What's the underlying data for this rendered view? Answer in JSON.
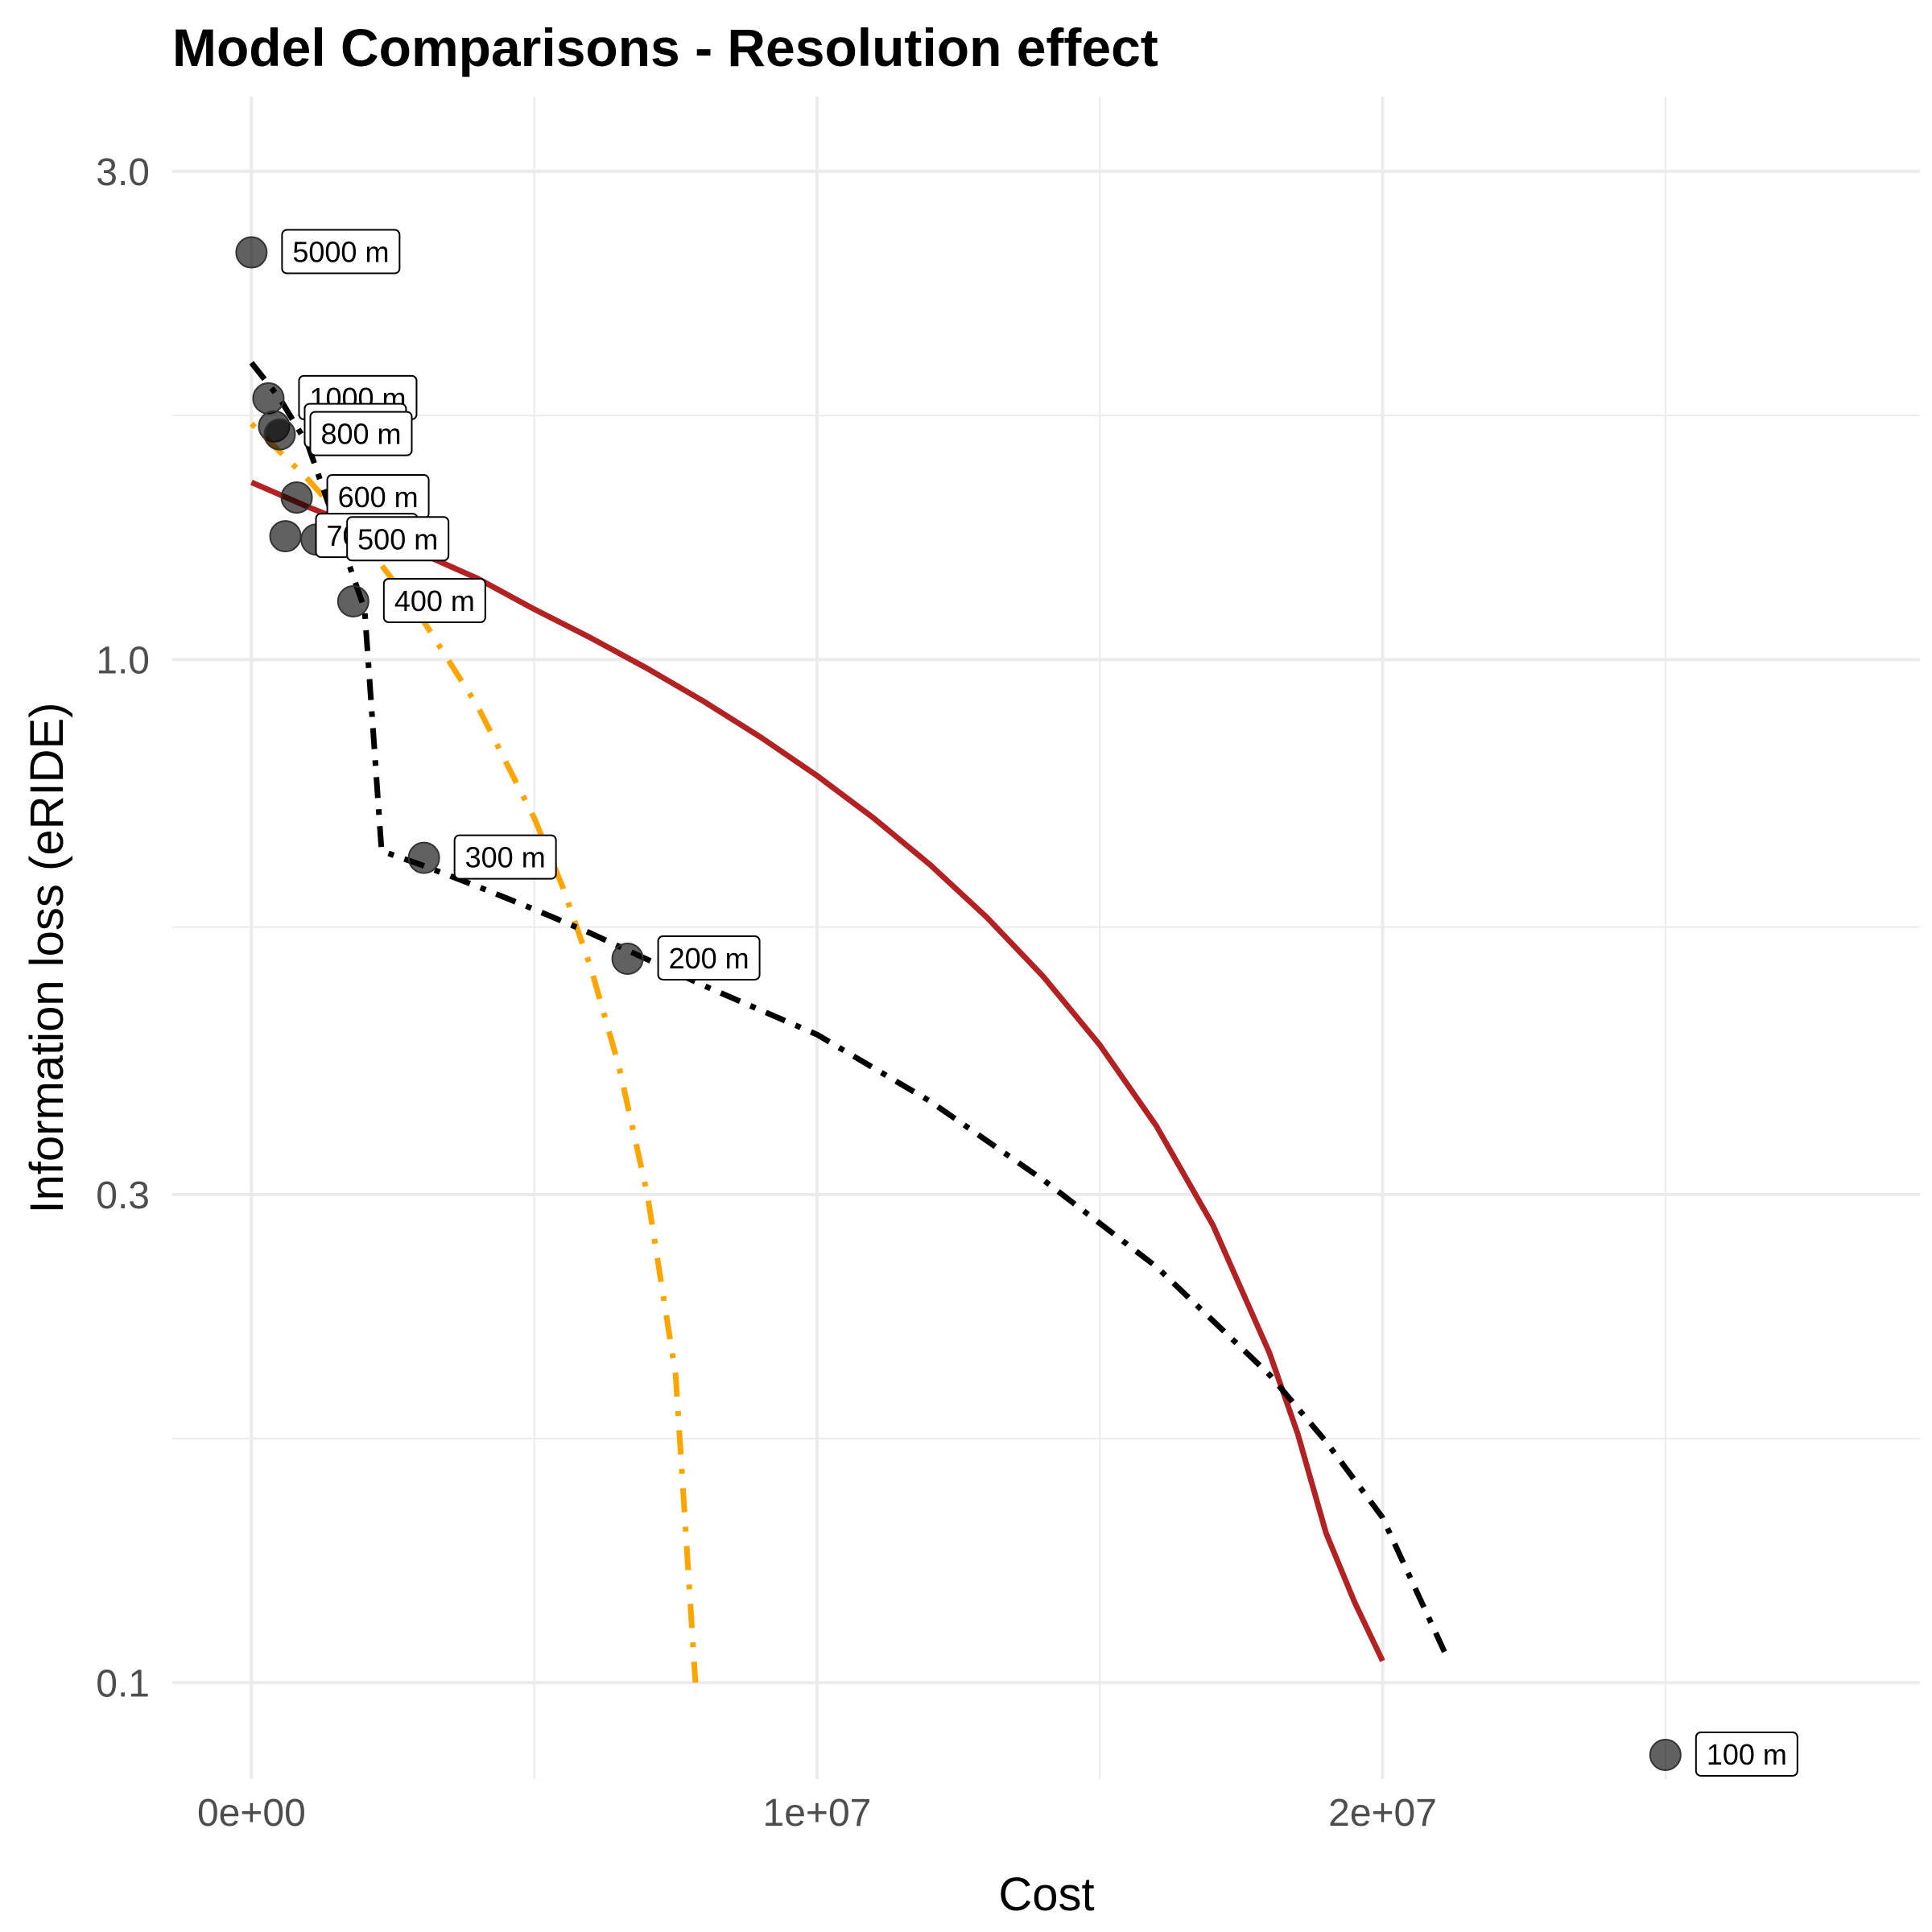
{
  "chart_data": {
    "type": "scatter",
    "title": "Model Comparisons - Resolution effect",
    "xlabel": "Cost",
    "ylabel": "Information loss (eRIDE)",
    "xlim": [
      -1400000,
      29500000
    ],
    "ylim": [
      0.0805,
      3.55
    ],
    "y_scale": "log10",
    "x_ticks": [
      {
        "value": 0,
        "label": "0e+00"
      },
      {
        "value": 10000000,
        "label": "1e+07"
      },
      {
        "value": 20000000,
        "label": "2e+07"
      }
    ],
    "x_minor": [
      5000000,
      15000000,
      25000000
    ],
    "y_ticks": [
      {
        "value": 0.1,
        "label": "0.1"
      },
      {
        "value": 0.3,
        "label": "0.3"
      },
      {
        "value": 1.0,
        "label": "1.0"
      },
      {
        "value": 3.0,
        "label": "3.0"
      }
    ],
    "y_minor": [
      0.1732,
      0.5477,
      1.7321
    ],
    "grid": true,
    "points": [
      {
        "x": 0,
        "y": 2.5,
        "label": "5000 m"
      },
      {
        "x": 300000,
        "y": 1.8,
        "label": "1000 m"
      },
      {
        "x": 400000,
        "y": 1.69,
        "label": "900 m"
      },
      {
        "x": 500000,
        "y": 1.66,
        "label": "800 m"
      },
      {
        "x": 800000,
        "y": 1.44,
        "label": "600 m"
      },
      {
        "x": 600000,
        "y": 1.32,
        "label": "700 m"
      },
      {
        "x": 1150000,
        "y": 1.31,
        "label": "500 m"
      },
      {
        "x": 1800000,
        "y": 1.14,
        "label": "400 m"
      },
      {
        "x": 3050000,
        "y": 0.64,
        "label": "300 m"
      },
      {
        "x": 6650000,
        "y": 0.51,
        "label": "200 m"
      },
      {
        "x": 25000000,
        "y": 0.085,
        "label": "100 m"
      }
    ],
    "series": [
      {
        "style": "solid",
        "color": "#b22222",
        "x": [
          0,
          1000000,
          2000000,
          3000000,
          4000000,
          5000000,
          6000000,
          7000000,
          8000000,
          9000000,
          10000000,
          11000000,
          12000000,
          13000000,
          14000000,
          15000000,
          16000000,
          17000000,
          18000000,
          18500000,
          19000000,
          19500000,
          20000000
        ],
        "y": [
          1.49,
          1.41,
          1.34,
          1.27,
          1.2,
          1.12,
          1.05,
          0.98,
          0.91,
          0.84,
          0.77,
          0.7,
          0.63,
          0.56,
          0.49,
          0.42,
          0.35,
          0.28,
          0.21,
          0.175,
          0.14,
          0.12,
          0.105
        ]
      },
      {
        "style": "dotdash",
        "color": "#ffa500",
        "x": [
          0,
          1000000,
          2000000,
          3000000,
          4000000,
          5000000,
          5500000,
          6000000,
          6500000,
          7000000,
          7500000,
          7850000
        ],
        "y": [
          1.7,
          1.5,
          1.3,
          1.1,
          0.9,
          0.7,
          0.6,
          0.5,
          0.4,
          0.3,
          0.2,
          0.1
        ]
      },
      {
        "style": "dashdot",
        "color": "#000000",
        "x": [
          0,
          500000,
          1000000,
          1500000,
          1700000,
          2000000,
          2300000,
          3000000,
          4000000,
          5000000,
          6000000,
          8000000,
          10000000,
          12000000,
          14000000,
          16000000,
          18000000,
          19000000,
          20000000,
          21100000
        ],
        "y": [
          1.95,
          1.8,
          1.62,
          1.35,
          1.25,
          1.12,
          0.65,
          0.63,
          0.6,
          0.57,
          0.54,
          0.48,
          0.43,
          0.37,
          0.31,
          0.255,
          0.2,
          0.172,
          0.145,
          0.107
        ]
      }
    ]
  }
}
